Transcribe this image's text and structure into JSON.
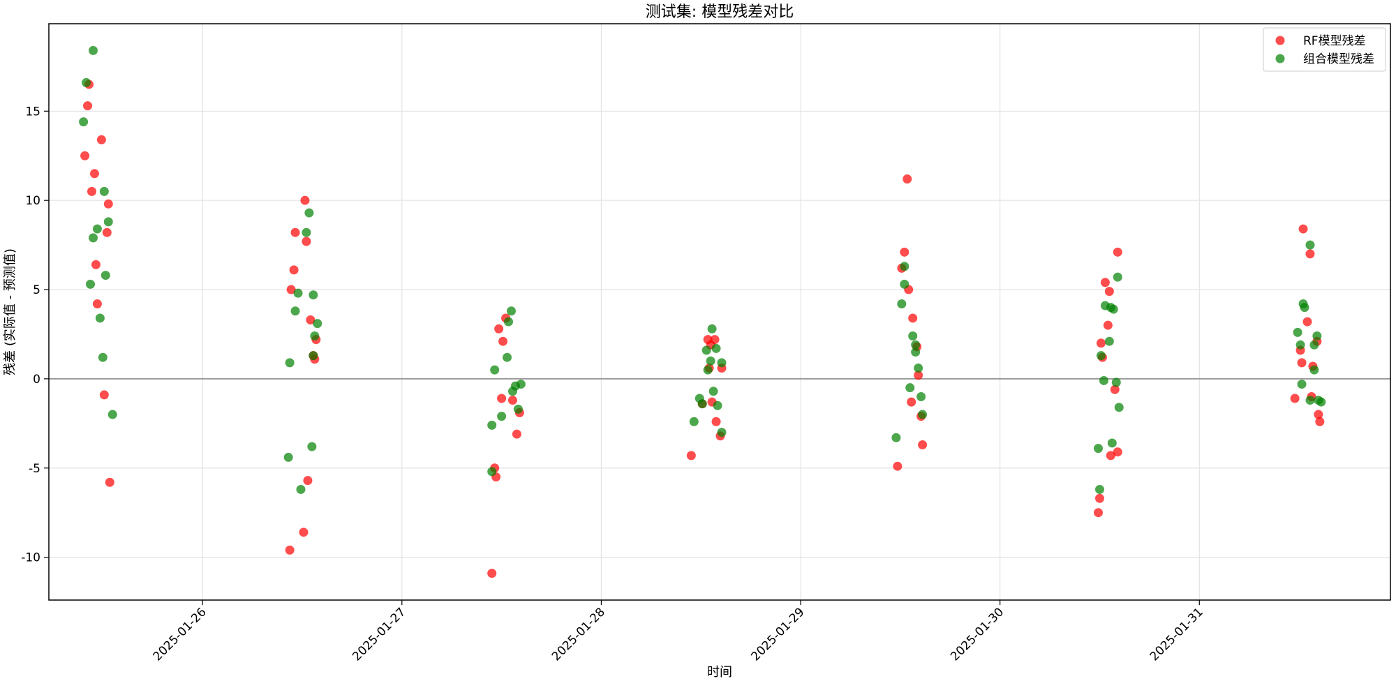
{
  "chart_data": {
    "type": "scatter",
    "title": "测试集: 模型残差对比",
    "xlabel": "时间",
    "ylabel": "残差 (实际值 - 预测值)",
    "x_axis": {
      "kind": "date",
      "range": [
        "2025-01-25 05:30",
        "2025-01-31 23:00"
      ],
      "ticks": [
        "2025-01-26",
        "2025-01-27",
        "2025-01-28",
        "2025-01-29",
        "2025-01-30",
        "2025-01-31"
      ],
      "tick_rotation_deg": 45
    },
    "y_axis": {
      "range": [
        -12.4,
        19.9
      ],
      "ticks": [
        -10,
        -5,
        0,
        5,
        10,
        15
      ]
    },
    "grid": true,
    "reference_line": {
      "y": 0,
      "color": "#999999"
    },
    "legend": {
      "placement": "top-right"
    },
    "series": [
      {
        "name": "RF模型残差",
        "color": "#ff0000",
        "points": [
          {
            "x": "2025-01-25 10:20",
            "y": 16.5
          },
          {
            "x": "2025-01-25 10:10",
            "y": 15.3
          },
          {
            "x": "2025-01-25 11:50",
            "y": 13.4
          },
          {
            "x": "2025-01-25 09:50",
            "y": 12.5
          },
          {
            "x": "2025-01-25 11:00",
            "y": 11.5
          },
          {
            "x": "2025-01-25 10:40",
            "y": 10.5
          },
          {
            "x": "2025-01-25 12:40",
            "y": 9.8
          },
          {
            "x": "2025-01-25 12:30",
            "y": 8.2
          },
          {
            "x": "2025-01-25 11:10",
            "y": 6.4
          },
          {
            "x": "2025-01-25 11:20",
            "y": 4.2
          },
          {
            "x": "2025-01-25 12:10",
            "y": -0.9
          },
          {
            "x": "2025-01-25 12:50",
            "y": -5.8
          },
          {
            "x": "2025-01-26 12:20",
            "y": 10.0
          },
          {
            "x": "2025-01-26 11:10",
            "y": 8.2
          },
          {
            "x": "2025-01-26 12:30",
            "y": 7.7
          },
          {
            "x": "2025-01-26 11:00",
            "y": 6.1
          },
          {
            "x": "2025-01-26 10:40",
            "y": 5.0
          },
          {
            "x": "2025-01-26 13:00",
            "y": 3.3
          },
          {
            "x": "2025-01-26 13:40",
            "y": 2.2
          },
          {
            "x": "2025-01-26 13:20",
            "y": 1.3
          },
          {
            "x": "2025-01-26 13:30",
            "y": 1.1
          },
          {
            "x": "2025-01-26 12:40",
            "y": -5.7
          },
          {
            "x": "2025-01-26 12:10",
            "y": -8.6
          },
          {
            "x": "2025-01-26 10:30",
            "y": -9.6
          },
          {
            "x": "2025-01-27 11:40",
            "y": 2.8
          },
          {
            "x": "2025-01-27 12:30",
            "y": 3.4
          },
          {
            "x": "2025-01-27 12:10",
            "y": 2.1
          },
          {
            "x": "2025-01-27 12:00",
            "y": -1.1
          },
          {
            "x": "2025-01-27 13:20",
            "y": -1.2
          },
          {
            "x": "2025-01-27 14:10",
            "y": -1.9
          },
          {
            "x": "2025-01-27 13:50",
            "y": -3.1
          },
          {
            "x": "2025-01-27 11:10",
            "y": -5.0
          },
          {
            "x": "2025-01-27 11:20",
            "y": -5.5
          },
          {
            "x": "2025-01-27 10:50",
            "y": -10.9
          },
          {
            "x": "2025-01-28 12:50",
            "y": 2.2
          },
          {
            "x": "2025-01-28 13:40",
            "y": 2.2
          },
          {
            "x": "2025-01-28 13:10",
            "y": 1.9
          },
          {
            "x": "2025-01-28 13:00",
            "y": 0.6
          },
          {
            "x": "2025-01-28 14:30",
            "y": 0.6
          },
          {
            "x": "2025-01-28 12:10",
            "y": -1.4
          },
          {
            "x": "2025-01-28 13:20",
            "y": -1.3
          },
          {
            "x": "2025-01-28 13:50",
            "y": -2.4
          },
          {
            "x": "2025-01-28 14:20",
            "y": -3.2
          },
          {
            "x": "2025-01-28 10:50",
            "y": -4.3
          },
          {
            "x": "2025-01-29 12:50",
            "y": 11.2
          },
          {
            "x": "2025-01-29 12:30",
            "y": 7.1
          },
          {
            "x": "2025-01-29 12:10",
            "y": 6.2
          },
          {
            "x": "2025-01-29 13:00",
            "y": 5.0
          },
          {
            "x": "2025-01-29 13:30",
            "y": 3.4
          },
          {
            "x": "2025-01-29 14:00",
            "y": 1.8
          },
          {
            "x": "2025-01-29 14:10",
            "y": 0.2
          },
          {
            "x": "2025-01-29 13:20",
            "y": -1.3
          },
          {
            "x": "2025-01-29 14:30",
            "y": -2.1
          },
          {
            "x": "2025-01-29 14:40",
            "y": -3.7
          },
          {
            "x": "2025-01-29 11:40",
            "y": -4.9
          },
          {
            "x": "2025-01-30 14:10",
            "y": 7.1
          },
          {
            "x": "2025-01-30 12:40",
            "y": 5.4
          },
          {
            "x": "2025-01-30 13:10",
            "y": 4.9
          },
          {
            "x": "2025-01-30 13:00",
            "y": 3.0
          },
          {
            "x": "2025-01-30 12:10",
            "y": 2.0
          },
          {
            "x": "2025-01-30 12:20",
            "y": 1.2
          },
          {
            "x": "2025-01-30 13:50",
            "y": -0.6
          },
          {
            "x": "2025-01-30 14:10",
            "y": -4.1
          },
          {
            "x": "2025-01-30 13:20",
            "y": -4.3
          },
          {
            "x": "2025-01-30 12:00",
            "y": -6.7
          },
          {
            "x": "2025-01-30 11:50",
            "y": -7.5
          },
          {
            "x": "2025-01-31 12:30",
            "y": 8.4
          },
          {
            "x": "2025-01-31 13:20",
            "y": 7.0
          },
          {
            "x": "2025-01-31 13:00",
            "y": 3.2
          },
          {
            "x": "2025-01-31 14:10",
            "y": 2.1
          },
          {
            "x": "2025-01-31 12:10",
            "y": 1.6
          },
          {
            "x": "2025-01-31 12:20",
            "y": 0.9
          },
          {
            "x": "2025-01-31 13:40",
            "y": 0.7
          },
          {
            "x": "2025-01-31 13:30",
            "y": -1.0
          },
          {
            "x": "2025-01-31 11:30",
            "y": -1.1
          },
          {
            "x": "2025-01-31 14:20",
            "y": -2.0
          },
          {
            "x": "2025-01-31 14:30",
            "y": -2.4
          }
        ]
      },
      {
        "name": "组合模型残差",
        "color": "#008000",
        "points": [
          {
            "x": "2025-01-25 10:50",
            "y": 18.4
          },
          {
            "x": "2025-01-25 10:00",
            "y": 16.6
          },
          {
            "x": "2025-01-25 09:40",
            "y": 14.4
          },
          {
            "x": "2025-01-25 12:10",
            "y": 10.5
          },
          {
            "x": "2025-01-25 12:40",
            "y": 8.8
          },
          {
            "x": "2025-01-25 11:20",
            "y": 8.4
          },
          {
            "x": "2025-01-25 10:50",
            "y": 7.9
          },
          {
            "x": "2025-01-25 12:20",
            "y": 5.8
          },
          {
            "x": "2025-01-25 10:30",
            "y": 5.3
          },
          {
            "x": "2025-01-25 11:40",
            "y": 3.4
          },
          {
            "x": "2025-01-25 12:00",
            "y": 1.2
          },
          {
            "x": "2025-01-25 13:10",
            "y": -2.0
          },
          {
            "x": "2025-01-26 12:50",
            "y": 9.3
          },
          {
            "x": "2025-01-26 12:30",
            "y": 8.2
          },
          {
            "x": "2025-01-26 11:30",
            "y": 4.8
          },
          {
            "x": "2025-01-26 13:20",
            "y": 4.7
          },
          {
            "x": "2025-01-26 11:10",
            "y": 3.8
          },
          {
            "x": "2025-01-26 13:50",
            "y": 3.1
          },
          {
            "x": "2025-01-26 13:30",
            "y": 2.4
          },
          {
            "x": "2025-01-26 13:20",
            "y": 1.3
          },
          {
            "x": "2025-01-26 10:30",
            "y": 0.9
          },
          {
            "x": "2025-01-26 13:10",
            "y": -3.8
          },
          {
            "x": "2025-01-26 10:20",
            "y": -4.4
          },
          {
            "x": "2025-01-26 11:50",
            "y": -6.2
          },
          {
            "x": "2025-01-27 13:10",
            "y": 3.8
          },
          {
            "x": "2025-01-27 12:50",
            "y": 3.2
          },
          {
            "x": "2025-01-27 12:40",
            "y": 1.2
          },
          {
            "x": "2025-01-27 11:10",
            "y": 0.5
          },
          {
            "x": "2025-01-27 14:20",
            "y": -0.3
          },
          {
            "x": "2025-01-27 13:40",
            "y": -0.4
          },
          {
            "x": "2025-01-27 13:20",
            "y": -0.7
          },
          {
            "x": "2025-01-27 14:00",
            "y": -1.7
          },
          {
            "x": "2025-01-27 12:00",
            "y": -2.1
          },
          {
            "x": "2025-01-27 10:50",
            "y": -2.6
          },
          {
            "x": "2025-01-27 10:50",
            "y": -5.2
          },
          {
            "x": "2025-01-28 13:20",
            "y": 2.8
          },
          {
            "x": "2025-01-28 12:40",
            "y": 1.6
          },
          {
            "x": "2025-01-28 13:50",
            "y": 1.7
          },
          {
            "x": "2025-01-28 13:10",
            "y": 1.0
          },
          {
            "x": "2025-01-28 14:30",
            "y": 0.9
          },
          {
            "x": "2025-01-28 12:50",
            "y": 0.5
          },
          {
            "x": "2025-01-28 13:30",
            "y": -0.7
          },
          {
            "x": "2025-01-28 11:50",
            "y": -1.1
          },
          {
            "x": "2025-01-28 12:10",
            "y": -1.4
          },
          {
            "x": "2025-01-28 14:00",
            "y": -1.5
          },
          {
            "x": "2025-01-28 11:10",
            "y": -2.4
          },
          {
            "x": "2025-01-28 14:30",
            "y": -3.0
          },
          {
            "x": "2025-01-29 12:30",
            "y": 6.3
          },
          {
            "x": "2025-01-29 12:30",
            "y": 5.3
          },
          {
            "x": "2025-01-29 12:10",
            "y": 4.2
          },
          {
            "x": "2025-01-29 13:30",
            "y": 2.4
          },
          {
            "x": "2025-01-29 13:50",
            "y": 1.9
          },
          {
            "x": "2025-01-29 13:50",
            "y": 1.5
          },
          {
            "x": "2025-01-29 14:10",
            "y": 0.6
          },
          {
            "x": "2025-01-29 13:10",
            "y": -0.5
          },
          {
            "x": "2025-01-29 14:30",
            "y": -1.0
          },
          {
            "x": "2025-01-29 14:40",
            "y": -2.0
          },
          {
            "x": "2025-01-29 11:30",
            "y": -3.3
          },
          {
            "x": "2025-01-30 14:10",
            "y": 5.7
          },
          {
            "x": "2025-01-30 12:40",
            "y": 4.1
          },
          {
            "x": "2025-01-30 13:20",
            "y": 4.0
          },
          {
            "x": "2025-01-30 13:40",
            "y": 3.9
          },
          {
            "x": "2025-01-30 13:10",
            "y": 2.1
          },
          {
            "x": "2025-01-30 12:10",
            "y": 1.3
          },
          {
            "x": "2025-01-30 12:30",
            "y": -0.1
          },
          {
            "x": "2025-01-30 14:00",
            "y": -0.2
          },
          {
            "x": "2025-01-30 14:20",
            "y": -1.6
          },
          {
            "x": "2025-01-30 13:30",
            "y": -3.6
          },
          {
            "x": "2025-01-30 11:50",
            "y": -3.9
          },
          {
            "x": "2025-01-30 12:00",
            "y": -6.2
          },
          {
            "x": "2025-01-31 13:20",
            "y": 7.5
          },
          {
            "x": "2025-01-31 12:30",
            "y": 4.2
          },
          {
            "x": "2025-01-31 12:40",
            "y": 4.0
          },
          {
            "x": "2025-01-31 11:50",
            "y": 2.6
          },
          {
            "x": "2025-01-31 14:10",
            "y": 2.4
          },
          {
            "x": "2025-01-31 12:10",
            "y": 1.9
          },
          {
            "x": "2025-01-31 13:50",
            "y": 1.9
          },
          {
            "x": "2025-01-31 13:50",
            "y": 0.5
          },
          {
            "x": "2025-01-31 12:20",
            "y": -0.3
          },
          {
            "x": "2025-01-31 13:20",
            "y": -1.2
          },
          {
            "x": "2025-01-31 14:20",
            "y": -1.2
          },
          {
            "x": "2025-01-31 14:40",
            "y": -1.3
          }
        ]
      }
    ]
  }
}
